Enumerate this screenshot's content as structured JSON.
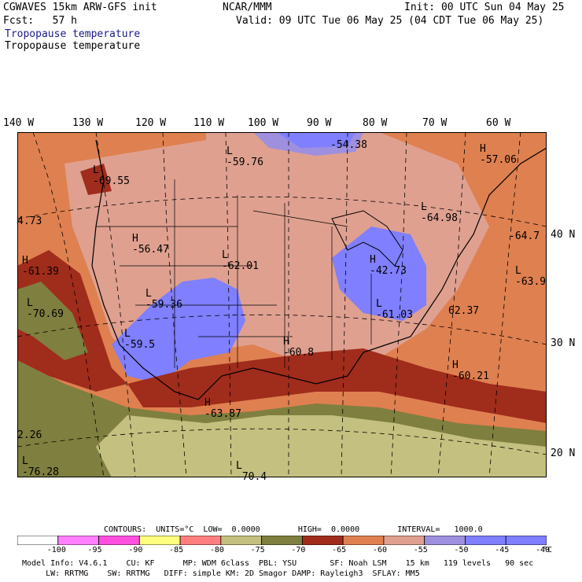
{
  "header": {
    "model_title": "CGWAVES 15km ARW-GFS init",
    "org": "NCAR/MMM",
    "init": "Init: 00 UTC Sun 04 May 25",
    "fcst": "Fcst:   57 h",
    "valid": "Valid: 09 UTC Tue 06 May 25 (04 CDT Tue 06 May 25)",
    "field_title_1": "Tropopause temperature",
    "field_title_2": "Tropopause temperature"
  },
  "map": {
    "lon_labels": [
      "140 W",
      "130 W",
      "120 W",
      "110 W",
      "100 W",
      "90 W",
      "80 W",
      "70 W",
      "60 W"
    ],
    "lat_labels": [
      "40 N",
      "30 N",
      "20 N"
    ],
    "extrema": [
      {
        "type": "L",
        "value": "-59.76"
      },
      {
        "type": "",
        "value": "-54.38"
      },
      {
        "type": "H",
        "value": "-57.06"
      },
      {
        "type": "L",
        "value": "-69.55"
      },
      {
        "type": "",
        "value": "4.73"
      },
      {
        "type": "L",
        "value": "-64.98"
      },
      {
        "type": "",
        "value": "-64.7"
      },
      {
        "type": "H",
        "value": "-56.47"
      },
      {
        "type": "L",
        "value": "-62.01"
      },
      {
        "type": "H",
        "value": "-42.73"
      },
      {
        "type": "H",
        "value": "-61.39"
      },
      {
        "type": "L",
        "value": "-63.9"
      },
      {
        "type": "L",
        "value": "-70.69"
      },
      {
        "type": "L",
        "value": "-59.36"
      },
      {
        "type": "",
        "value": "62.37"
      },
      {
        "type": "L",
        "value": "-61.03"
      },
      {
        "type": "L",
        "value": "-59.5"
      },
      {
        "type": "H",
        "value": "-60.8"
      },
      {
        "type": "H",
        "value": "-60.21"
      },
      {
        "type": "H",
        "value": "-63.87"
      },
      {
        "type": "",
        "value": "2.26"
      },
      {
        "type": "L",
        "value": "-76.28"
      },
      {
        "type": "L",
        "value": "-70.4"
      }
    ]
  },
  "contours": {
    "line": "CONTOURS:  UNITS=°C  LOW=  0.0000        HIGH=  0.0000        INTERVAL=   1000.0"
  },
  "colorbar": {
    "unit": "°C",
    "ticks": [
      "-100",
      "-95",
      "-90",
      "-85",
      "-80",
      "-75",
      "-70",
      "-65",
      "-60",
      "-55",
      "-50",
      "-45",
      "-40"
    ],
    "colors": [
      "#ffffff",
      "#ff7fff",
      "#ff4fdf",
      "#ffff7f",
      "#ff7f7f",
      "#c4c07f",
      "#7f7f3f",
      "#a02c1c",
      "#df8050",
      "#dfa090",
      "#9f8fdf",
      "#7f7fff",
      "#7f7fff"
    ]
  },
  "footer": {
    "line1": "Model Info: V4.6.1    CU: KF      MP: WDM 6class  PBL: YSU       SF: Noah LSM    15 km   119 levels   90 sec",
    "line2": "     LW: RRTMG    SW: RRTMG   DIFF: simple KM: 2D Smagor DAMP: Rayleigh3  SFLAY: MM5"
  }
}
